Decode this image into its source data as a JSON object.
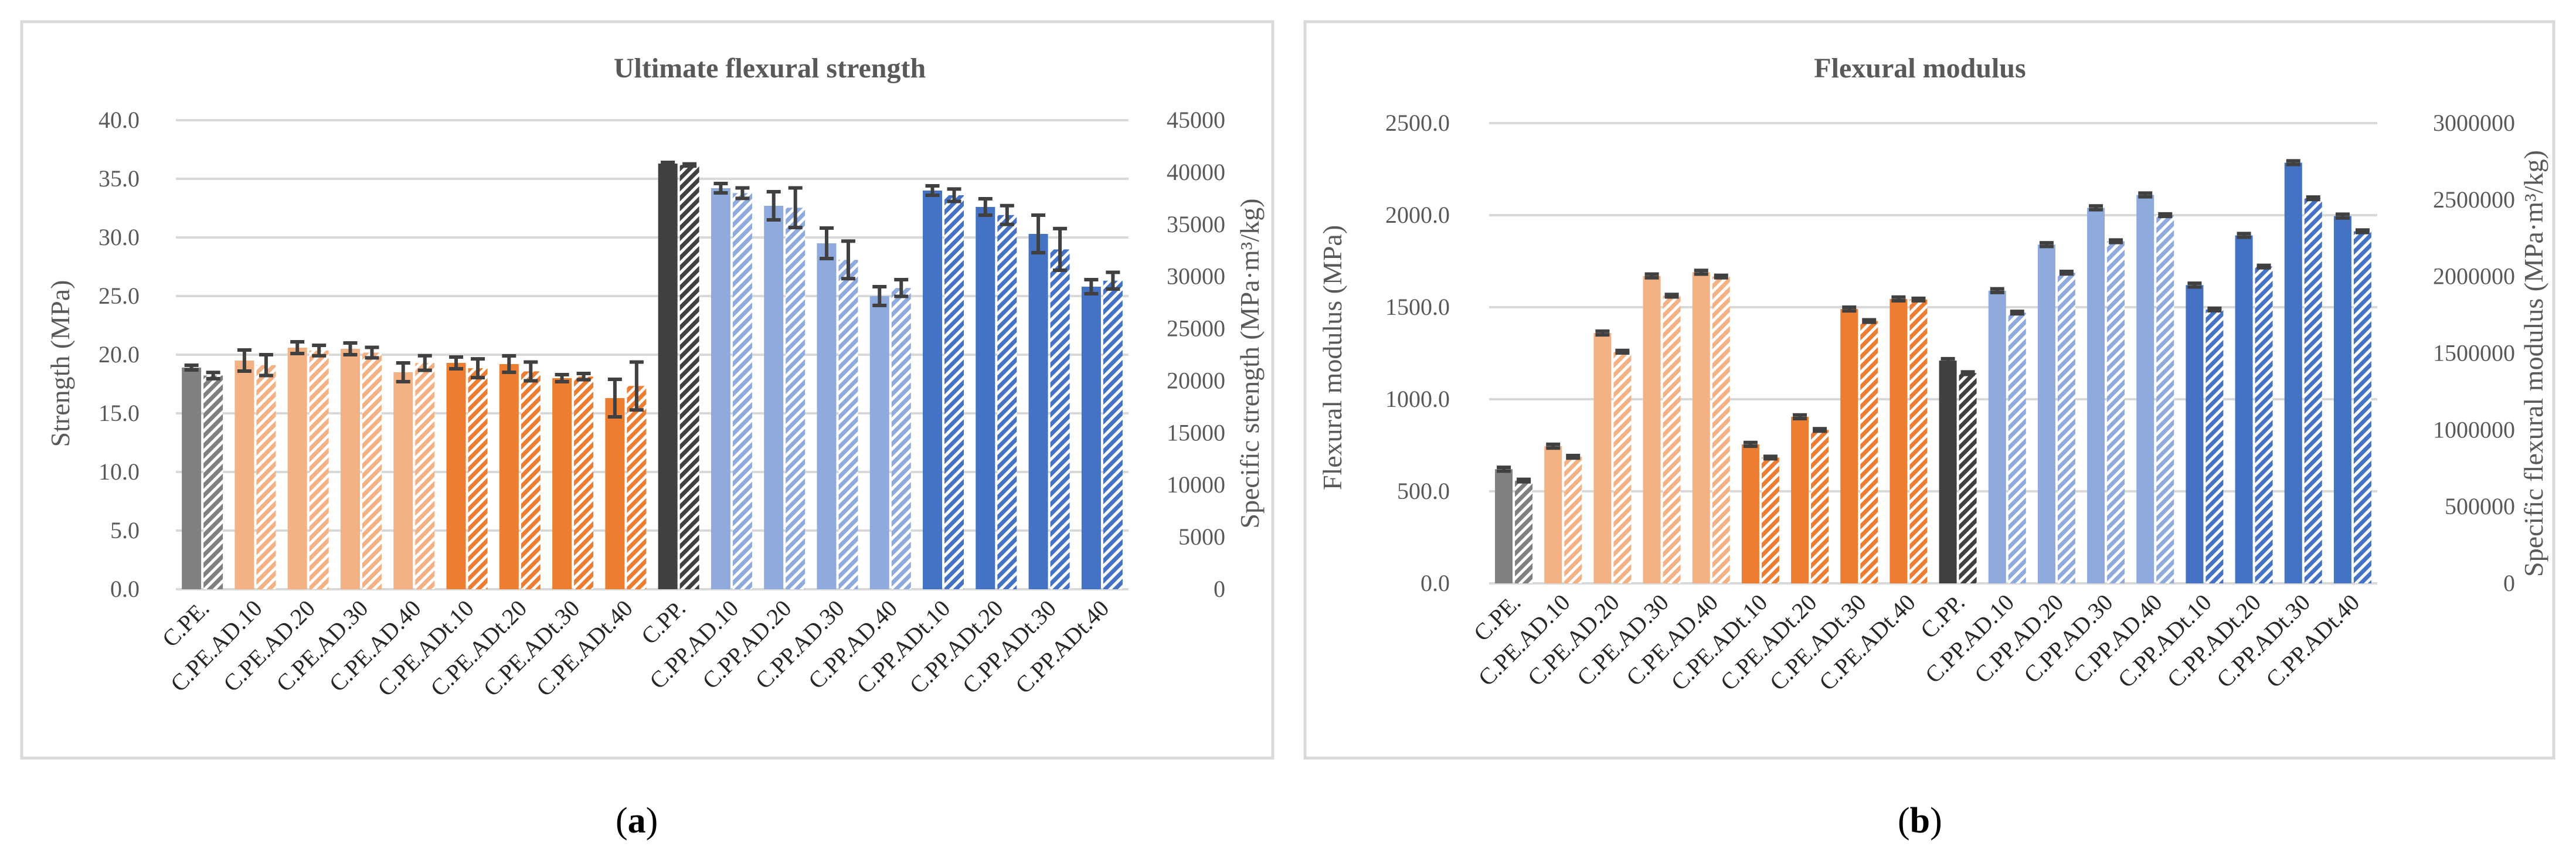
{
  "captions": {
    "a": "a",
    "b": "b"
  },
  "colors": {
    "gray": "#808080",
    "darkgray": "#404040",
    "lightorange": "#f4b183",
    "orange": "#ed7d31",
    "lightblue": "#8faadc",
    "blue": "#4472c4",
    "text": "#595959"
  },
  "chart_data": [
    {
      "type": "bar",
      "title": "Ultimate flexural strength",
      "ylabel": "Strength (MPa)",
      "y2label": "Specific strength (MPa·m³/kg)",
      "ylim": [
        0,
        40
      ],
      "y2lim": [
        0,
        45000
      ],
      "yticks": [
        "0.0",
        "5.0",
        "10.0",
        "15.0",
        "20.0",
        "25.0",
        "30.0",
        "35.0",
        "40.0"
      ],
      "y2ticks": [
        "0",
        "5000",
        "10000",
        "15000",
        "20000",
        "25000",
        "30000",
        "35000",
        "40000",
        "45000"
      ],
      "categories": [
        "C.PE.",
        "C.PE.AD.10",
        "C.PE.AD.20",
        "C.PE.AD.30",
        "C.PE.AD.40",
        "C.PE.ADt.10",
        "C.PE.ADt.20",
        "C.PE.ADt.30",
        "C.PE.ADt.40",
        "C.PP.",
        "C.PP.AD.10",
        "C.PP.AD.20",
        "C.PP.AD.30",
        "C.PP.AD.40",
        "C.PP.ADt.10",
        "C.PP.ADt.20",
        "C.PP.ADt.30",
        "C.PP.ADt.40"
      ],
      "color_groups": [
        "gray",
        "lightorange",
        "lightorange",
        "lightorange",
        "lightorange",
        "orange",
        "orange",
        "orange",
        "orange",
        "darkgray",
        "lightblue",
        "lightblue",
        "lightblue",
        "lightblue",
        "blue",
        "blue",
        "blue",
        "blue"
      ],
      "series": [
        {
          "name": "Strength",
          "axis": "primary",
          "pattern": "solid",
          "values": [
            18.9,
            19.5,
            20.6,
            20.5,
            18.5,
            19.3,
            19.2,
            18.0,
            16.3,
            36.3,
            34.2,
            32.7,
            29.5,
            25.0,
            34.0,
            32.6,
            30.3,
            25.8
          ],
          "errors": [
            0.2,
            0.9,
            0.5,
            0.5,
            0.8,
            0.5,
            0.7,
            0.3,
            1.6,
            0.1,
            0.4,
            1.2,
            1.3,
            0.8,
            0.4,
            0.7,
            1.6,
            0.6
          ]
        },
        {
          "name": "Specific strength",
          "axis": "secondary",
          "pattern": "striped",
          "values": [
            20500,
            21500,
            22900,
            22700,
            21700,
            21200,
            20900,
            20400,
            19500,
            40700,
            38000,
            36600,
            31600,
            28900,
            37800,
            35900,
            32600,
            29600
          ],
          "errors": [
            300,
            1000,
            500,
            500,
            700,
            900,
            900,
            300,
            2300,
            100,
            500,
            1900,
            1800,
            800,
            600,
            900,
            2000,
            800
          ]
        }
      ]
    },
    {
      "type": "bar",
      "title": "Flexural modulus",
      "ylabel": "Flexural modulus (MPa)",
      "y2label": "Specific flexural modulus (MPa·m³/kg)",
      "ylim": [
        0,
        2500
      ],
      "y2lim": [
        0,
        3000000
      ],
      "yticks": [
        "0.0",
        "500.0",
        "1000.0",
        "1500.0",
        "2000.0",
        "2500.0"
      ],
      "y2ticks": [
        "0",
        "500000",
        "1000000",
        "1500000",
        "2000000",
        "2500000",
        "3000000"
      ],
      "categories": [
        "C.PE.",
        "C.PE.AD.10",
        "C.PE.AD.20",
        "C.PE.AD.30",
        "C.PE.AD.40",
        "C.PE.ADt.10",
        "C.PE.ADt.20",
        "C.PE.ADt.30",
        "C.PE.ADt.40",
        "C.PP.",
        "C.PP.AD.10",
        "C.PP.AD.20",
        "C.PP.AD.30",
        "C.PP.AD.40",
        "C.PP.ADt.10",
        "C.PP.ADt.20",
        "C.PP.ADt.30",
        "C.PP.ADt.40"
      ],
      "color_groups": [
        "gray",
        "lightorange",
        "lightorange",
        "lightorange",
        "lightorange",
        "orange",
        "orange",
        "orange",
        "orange",
        "darkgray",
        "lightblue",
        "lightblue",
        "lightblue",
        "lightblue",
        "blue",
        "blue",
        "blue",
        "blue"
      ],
      "series": [
        {
          "name": "Flexural modulus",
          "axis": "primary",
          "pattern": "solid",
          "values": [
            620,
            745,
            1360,
            1670,
            1690,
            755,
            905,
            1490,
            1545,
            1210,
            1590,
            1840,
            2040,
            2110,
            1620,
            1890,
            2285,
            1995
          ],
          "errors": [
            10,
            10,
            10,
            10,
            10,
            10,
            10,
            10,
            10,
            10,
            10,
            10,
            10,
            10,
            10,
            10,
            10,
            10
          ]
        },
        {
          "name": "Specific flexural modulus",
          "axis": "secondary",
          "pattern": "striped",
          "values": [
            670000,
            825000,
            1510000,
            1875000,
            2000000,
            820000,
            1000000,
            1710000,
            1850000,
            1370000,
            1765000,
            2025000,
            2230000,
            2400000,
            1785000,
            2065000,
            2510000,
            2295000
          ],
          "errors": [
            8000,
            8000,
            8000,
            8000,
            8000,
            8000,
            8000,
            8000,
            8000,
            8000,
            8000,
            8000,
            8000,
            8000,
            8000,
            8000,
            8000,
            8000
          ]
        }
      ]
    }
  ]
}
